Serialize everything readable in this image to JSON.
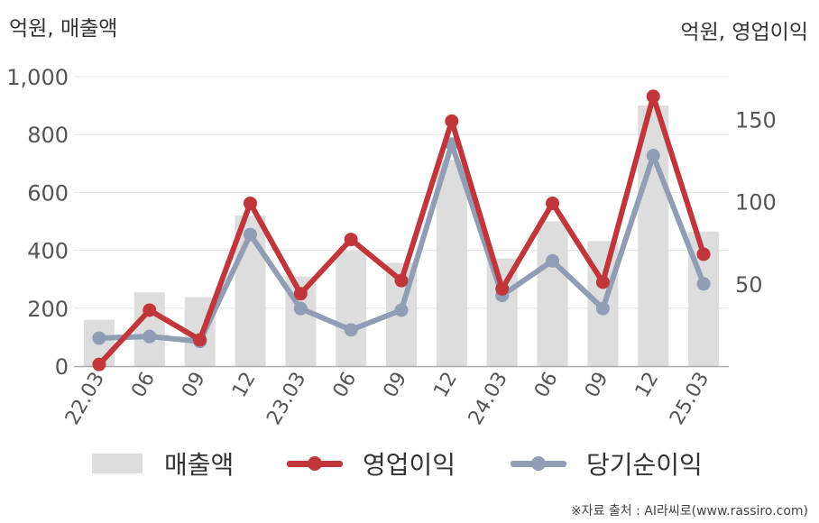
{
  "units": {
    "left": "억원, 매출액",
    "right": "억원, 영업이익"
  },
  "legend": {
    "sales": "매출액",
    "op": "영업이익",
    "net": "당기순이익"
  },
  "source": "※자료 출처 : AI라씨로(www.rassiro.com)",
  "colors": {
    "sales": "#dddddd",
    "op": "#c0363a",
    "net": "#909db5",
    "grid": "#e6e6e6",
    "axis": "#aaaaaa",
    "text": "#555555"
  },
  "chart_data": {
    "type": "bar",
    "categories": [
      "22.03",
      "06",
      "09",
      "12",
      "23.03",
      "06",
      "09",
      "12",
      "24.03",
      "06",
      "09",
      "12",
      "25.03"
    ],
    "series": [
      {
        "name": "매출액",
        "type": "bar",
        "axis": "left",
        "values": [
          160,
          255,
          238,
          520,
          310,
          398,
          357,
          712,
          372,
          500,
          432,
          900,
          465
        ]
      },
      {
        "name": "영업이익",
        "type": "line",
        "axis": "right",
        "values": [
          1,
          34,
          16,
          99,
          44,
          77,
          52,
          149,
          47,
          99,
          51,
          164,
          68
        ]
      },
      {
        "name": "당기순이익",
        "type": "line",
        "axis": "right",
        "values": [
          17,
          18,
          15,
          80,
          35,
          22,
          34,
          135,
          43,
          64,
          35,
          128,
          50
        ]
      }
    ],
    "yleft": {
      "ticks": [
        "0",
        "200",
        "400",
        "600",
        "800",
        "1,000"
      ],
      "min": 0,
      "max": 1000
    },
    "yright": {
      "ticks": [
        "50",
        "100",
        "150"
      ],
      "min": 0,
      "max": 176
    },
    "grid": true,
    "legend_position": "bottom"
  }
}
